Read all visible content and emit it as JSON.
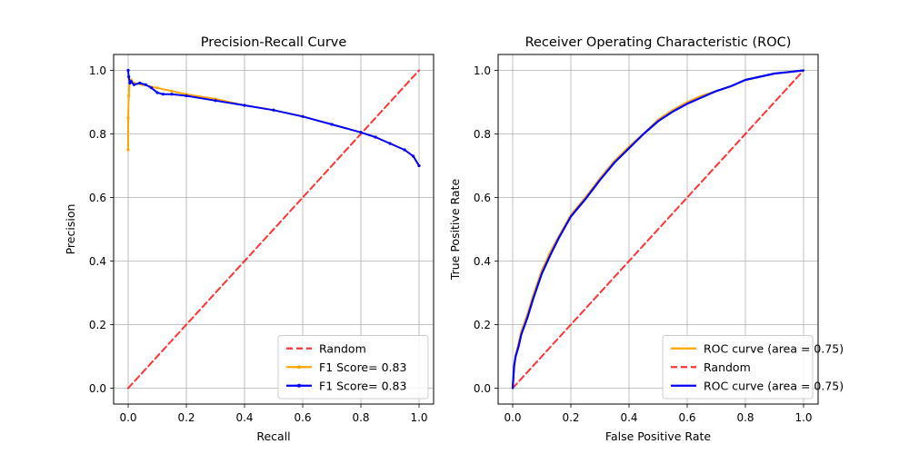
{
  "chart_data": [
    {
      "type": "line",
      "title": "Precision-Recall Curve",
      "xlabel": "Recall",
      "ylabel": "Precision",
      "xlim": [
        -0.05,
        1.05
      ],
      "ylim": [
        -0.05,
        1.05
      ],
      "xticks": [
        "0.0",
        "0.2",
        "0.4",
        "0.6",
        "0.8",
        "1.0"
      ],
      "yticks": [
        "0.0",
        "0.2",
        "0.4",
        "0.6",
        "0.8",
        "1.0"
      ],
      "grid": true,
      "legend_position": "lower-right",
      "series": [
        {
          "name": "Random",
          "color": "#ff0000",
          "style": "dashed",
          "x": [
            0.0,
            1.0
          ],
          "y": [
            0.0,
            1.0
          ]
        },
        {
          "name": "F1 Score= 0.83",
          "color": "#ffa500",
          "style": "solid-dots",
          "x": [
            0.0,
            0.0,
            0.002,
            0.005,
            0.01,
            0.02,
            0.05,
            0.1,
            0.15,
            0.2,
            0.3,
            0.4,
            0.5,
            0.6,
            0.7,
            0.8,
            0.85,
            0.9,
            0.95,
            0.98,
            1.0
          ],
          "y": [
            0.75,
            0.85,
            0.92,
            0.96,
            0.97,
            0.96,
            0.955,
            0.945,
            0.935,
            0.925,
            0.91,
            0.89,
            0.875,
            0.855,
            0.83,
            0.805,
            0.79,
            0.77,
            0.75,
            0.73,
            0.7
          ]
        },
        {
          "name": "F1 Score= 0.83",
          "color": "#0000ff",
          "style": "solid-dots",
          "x": [
            0.0,
            0.002,
            0.006,
            0.01,
            0.02,
            0.04,
            0.06,
            0.08,
            0.1,
            0.12,
            0.15,
            0.2,
            0.3,
            0.4,
            0.5,
            0.6,
            0.7,
            0.8,
            0.85,
            0.9,
            0.95,
            0.98,
            1.0
          ],
          "y": [
            1.0,
            0.98,
            0.96,
            0.965,
            0.955,
            0.96,
            0.955,
            0.945,
            0.93,
            0.925,
            0.925,
            0.92,
            0.905,
            0.89,
            0.875,
            0.855,
            0.83,
            0.805,
            0.79,
            0.77,
            0.75,
            0.73,
            0.7
          ]
        }
      ]
    },
    {
      "type": "line",
      "title": "Receiver Operating Characteristic (ROC)",
      "xlabel": "False Positive Rate",
      "ylabel": "True Positive Rate",
      "xlim": [
        -0.05,
        1.05
      ],
      "ylim": [
        -0.05,
        1.05
      ],
      "xticks": [
        "0.0",
        "0.2",
        "0.4",
        "0.6",
        "0.8",
        "1.0"
      ],
      "yticks": [
        "0.0",
        "0.2",
        "0.4",
        "0.6",
        "0.8",
        "1.0"
      ],
      "grid": true,
      "legend_position": "lower-right",
      "series": [
        {
          "name": "ROC curve (area = 0.75)",
          "color": "#ffa500",
          "style": "solid",
          "x": [
            0.0,
            0.005,
            0.01,
            0.02,
            0.03,
            0.05,
            0.07,
            0.1,
            0.13,
            0.16,
            0.2,
            0.25,
            0.3,
            0.35,
            0.4,
            0.45,
            0.5,
            0.55,
            0.6,
            0.65,
            0.7,
            0.75,
            0.8,
            0.85,
            0.9,
            0.95,
            1.0
          ],
          "y": [
            0.0,
            0.07,
            0.1,
            0.14,
            0.18,
            0.23,
            0.29,
            0.37,
            0.43,
            0.48,
            0.545,
            0.6,
            0.66,
            0.715,
            0.76,
            0.8,
            0.845,
            0.875,
            0.9,
            0.92,
            0.935,
            0.95,
            0.97,
            0.98,
            0.99,
            0.995,
            1.0
          ]
        },
        {
          "name": "Random",
          "color": "#ff0000",
          "style": "dashed",
          "x": [
            0.0,
            1.0
          ],
          "y": [
            0.0,
            1.0
          ]
        },
        {
          "name": "ROC curve (area = 0.75)",
          "color": "#0000ff",
          "style": "solid",
          "x": [
            0.0,
            0.005,
            0.01,
            0.02,
            0.03,
            0.05,
            0.07,
            0.1,
            0.13,
            0.16,
            0.2,
            0.25,
            0.3,
            0.35,
            0.4,
            0.45,
            0.5,
            0.55,
            0.6,
            0.65,
            0.7,
            0.75,
            0.8,
            0.85,
            0.9,
            0.95,
            1.0
          ],
          "y": [
            0.0,
            0.07,
            0.1,
            0.13,
            0.17,
            0.22,
            0.28,
            0.36,
            0.42,
            0.475,
            0.54,
            0.595,
            0.655,
            0.71,
            0.755,
            0.8,
            0.84,
            0.87,
            0.895,
            0.915,
            0.935,
            0.95,
            0.97,
            0.98,
            0.99,
            0.995,
            1.0
          ]
        }
      ]
    }
  ]
}
